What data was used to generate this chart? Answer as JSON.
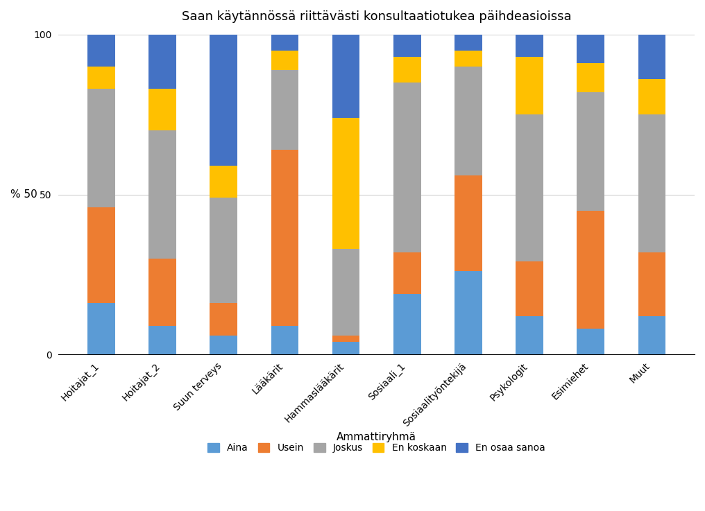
{
  "title": "Saan käytännössä riittävästi konsultaatiotukea päihdeasioissa",
  "categories": [
    "Hoitajat_1",
    "Hoitajat_2",
    "Suun terveys",
    "Lääkärit",
    "Hammaslääkärit",
    "Sosiaali_1",
    "Sosiaalityöntekijä",
    "Psykologit",
    "Esimiehet",
    "Muut"
  ],
  "xlabel": "Ammattiryhmä",
  "legend_labels": [
    "Aina",
    "Usein",
    "Joskus",
    "En koskaan",
    "En osaa sanoa"
  ],
  "colors": [
    "#5B9BD5",
    "#ED7D31",
    "#A5A5A5",
    "#FFC000",
    "#4472C4"
  ],
  "data": {
    "Aina": [
      16,
      9,
      6,
      9,
      4,
      19,
      26,
      12,
      8,
      12
    ],
    "Usein": [
      30,
      21,
      10,
      55,
      2,
      13,
      30,
      17,
      37,
      20
    ],
    "Joskus": [
      37,
      40,
      33,
      25,
      27,
      53,
      34,
      46,
      37,
      43
    ],
    "En koskaan": [
      7,
      13,
      10,
      6,
      41,
      8,
      5,
      18,
      9,
      11
    ],
    "En osaa sanoa": [
      10,
      17,
      41,
      5,
      26,
      7,
      5,
      7,
      9,
      14
    ]
  },
  "ylim": [
    0,
    100
  ],
  "yticks": [
    0,
    50,
    100
  ],
  "ytick_labels": [
    "0",
    "50",
    "100"
  ],
  "background_color": "#ffffff",
  "title_fontsize": 13,
  "bar_width": 0.45
}
